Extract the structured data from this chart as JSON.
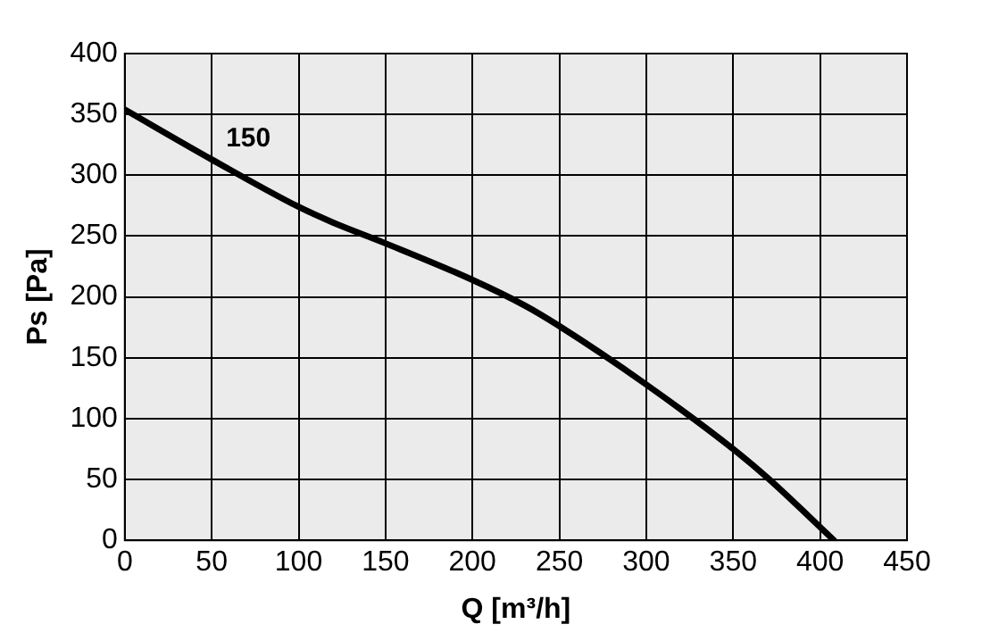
{
  "chart_data": {
    "type": "line",
    "xlabel": "Q [m³/h]",
    "ylabel": "Ps [Pa]",
    "xlim": [
      0,
      450
    ],
    "xticks": [
      0,
      50,
      100,
      150,
      200,
      250,
      300,
      350,
      400,
      450
    ],
    "ylim": [
      0,
      400
    ],
    "yticks": [
      0,
      50,
      100,
      150,
      200,
      250,
      300,
      350,
      400
    ],
    "grid": true,
    "legend": false,
    "marker": "none",
    "line_style": "solid",
    "series": [
      {
        "name": "150",
        "color": "#000000",
        "x": [
          0,
          50,
          100,
          120,
          150,
          200,
          230,
          250,
          300,
          350,
          370,
          408
        ],
        "values": [
          354,
          313,
          274,
          261,
          244,
          214,
          193,
          176,
          128,
          75,
          51,
          0
        ]
      }
    ]
  }
}
